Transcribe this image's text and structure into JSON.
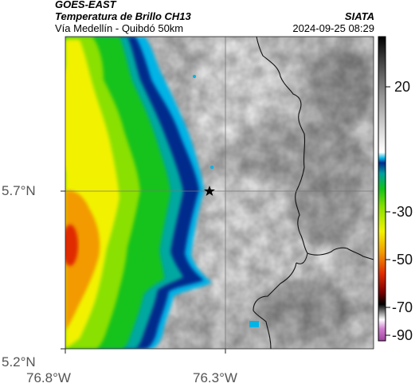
{
  "header": {
    "satellite": "GOES-EAST",
    "product": "Temperatura de Brillo CH13",
    "region": "Vía Medellín - Quibdó 50km",
    "institution": "SIATA",
    "datetime": "2024-09-25 08:29"
  },
  "map": {
    "lat_ticks": [
      "5.7°N",
      "5.2°N"
    ],
    "lon_ticks": [
      "76.8°W",
      "76.3°W"
    ],
    "marker": "star-marker",
    "gridlines": true
  },
  "colorbar": {
    "ticks": [
      "20",
      "-30",
      "-50",
      "-70",
      "-90"
    ],
    "range": [
      -95,
      45
    ],
    "colors": {
      "warm": "#ffffff",
      "cold_cyan": "#00b4e6",
      "deep_blue": "#002a8c",
      "green": "#12c21a",
      "yellow": "#f2f200",
      "orange": "#f29a00",
      "red": "#e02a00",
      "black": "#000000",
      "magenta": "#c060c0"
    }
  }
}
